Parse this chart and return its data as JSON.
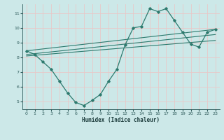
{
  "xlabel": "Humidex (Indice chaleur)",
  "bg_color": "#cce8e8",
  "line_color": "#2d7a6e",
  "grid_color": "#e8c8c8",
  "xlim": [
    -0.5,
    23.5
  ],
  "ylim": [
    4.5,
    11.6
  ],
  "xticks": [
    0,
    1,
    2,
    3,
    4,
    5,
    6,
    7,
    8,
    9,
    10,
    11,
    12,
    13,
    14,
    15,
    16,
    17,
    18,
    19,
    20,
    21,
    22,
    23
  ],
  "yticks": [
    5,
    6,
    7,
    8,
    9,
    10,
    11
  ],
  "curve_x": [
    0,
    1,
    2,
    3,
    4,
    5,
    6,
    7,
    8,
    9,
    10,
    11,
    12,
    13,
    14,
    15,
    16,
    17,
    18,
    19,
    20,
    21,
    22,
    23
  ],
  "curve_y": [
    8.45,
    8.2,
    7.7,
    7.2,
    6.4,
    5.6,
    4.95,
    4.75,
    5.1,
    5.5,
    6.4,
    7.2,
    8.85,
    10.0,
    10.1,
    11.3,
    11.1,
    11.3,
    10.5,
    9.7,
    8.9,
    8.7,
    9.7,
    9.9
  ],
  "line1_x": [
    0,
    23
  ],
  "line1_y": [
    8.45,
    9.9
  ],
  "line2_x": [
    0,
    23
  ],
  "line2_y": [
    8.2,
    9.55
  ],
  "line3_x": [
    0,
    23
  ],
  "line3_y": [
    8.1,
    9.15
  ]
}
